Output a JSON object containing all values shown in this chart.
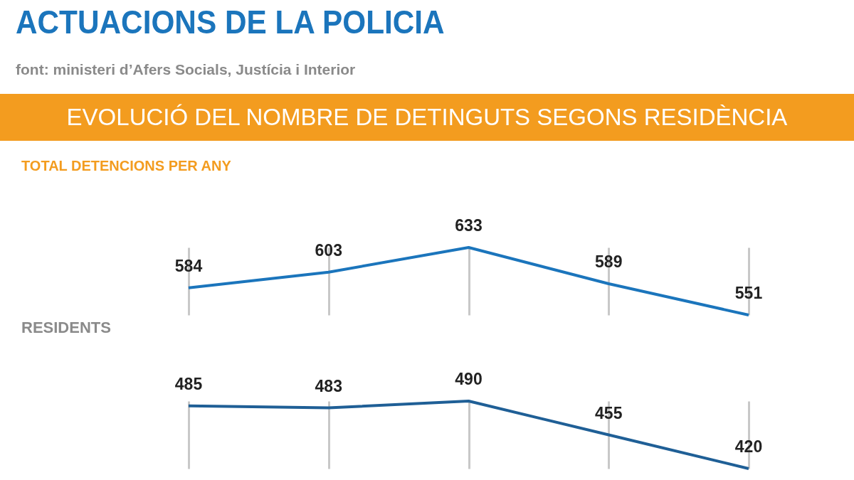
{
  "chart_data": [
    {
      "type": "line",
      "title": "ACTUACIONS DE LA POLICIA",
      "subtitle": "EVOLUCIÓ DEL NOMBRE DE DETINGUTS SEGONS RESIDÈNCIA",
      "annotations": [
        "font: ministeri d’Afers Socials, Justícia i Interior"
      ],
      "ylabel": "TOTAL DETENCIONS PER ANY",
      "categories": [
        null,
        null,
        null,
        null,
        null
      ],
      "grid": "x",
      "data_labels": true,
      "series": [
        {
          "color": "#1b75bc",
          "values": [
            584,
            603,
            633,
            589,
            551
          ]
        }
      ]
    },
    {
      "type": "line",
      "ylabel": "RESIDENTS",
      "categories": [
        null,
        null,
        null,
        null,
        null
      ],
      "grid": "x",
      "data_labels": true,
      "series": [
        {
          "color": "#1f5f96",
          "values": [
            485,
            483,
            490,
            455,
            420
          ]
        }
      ]
    }
  ]
}
